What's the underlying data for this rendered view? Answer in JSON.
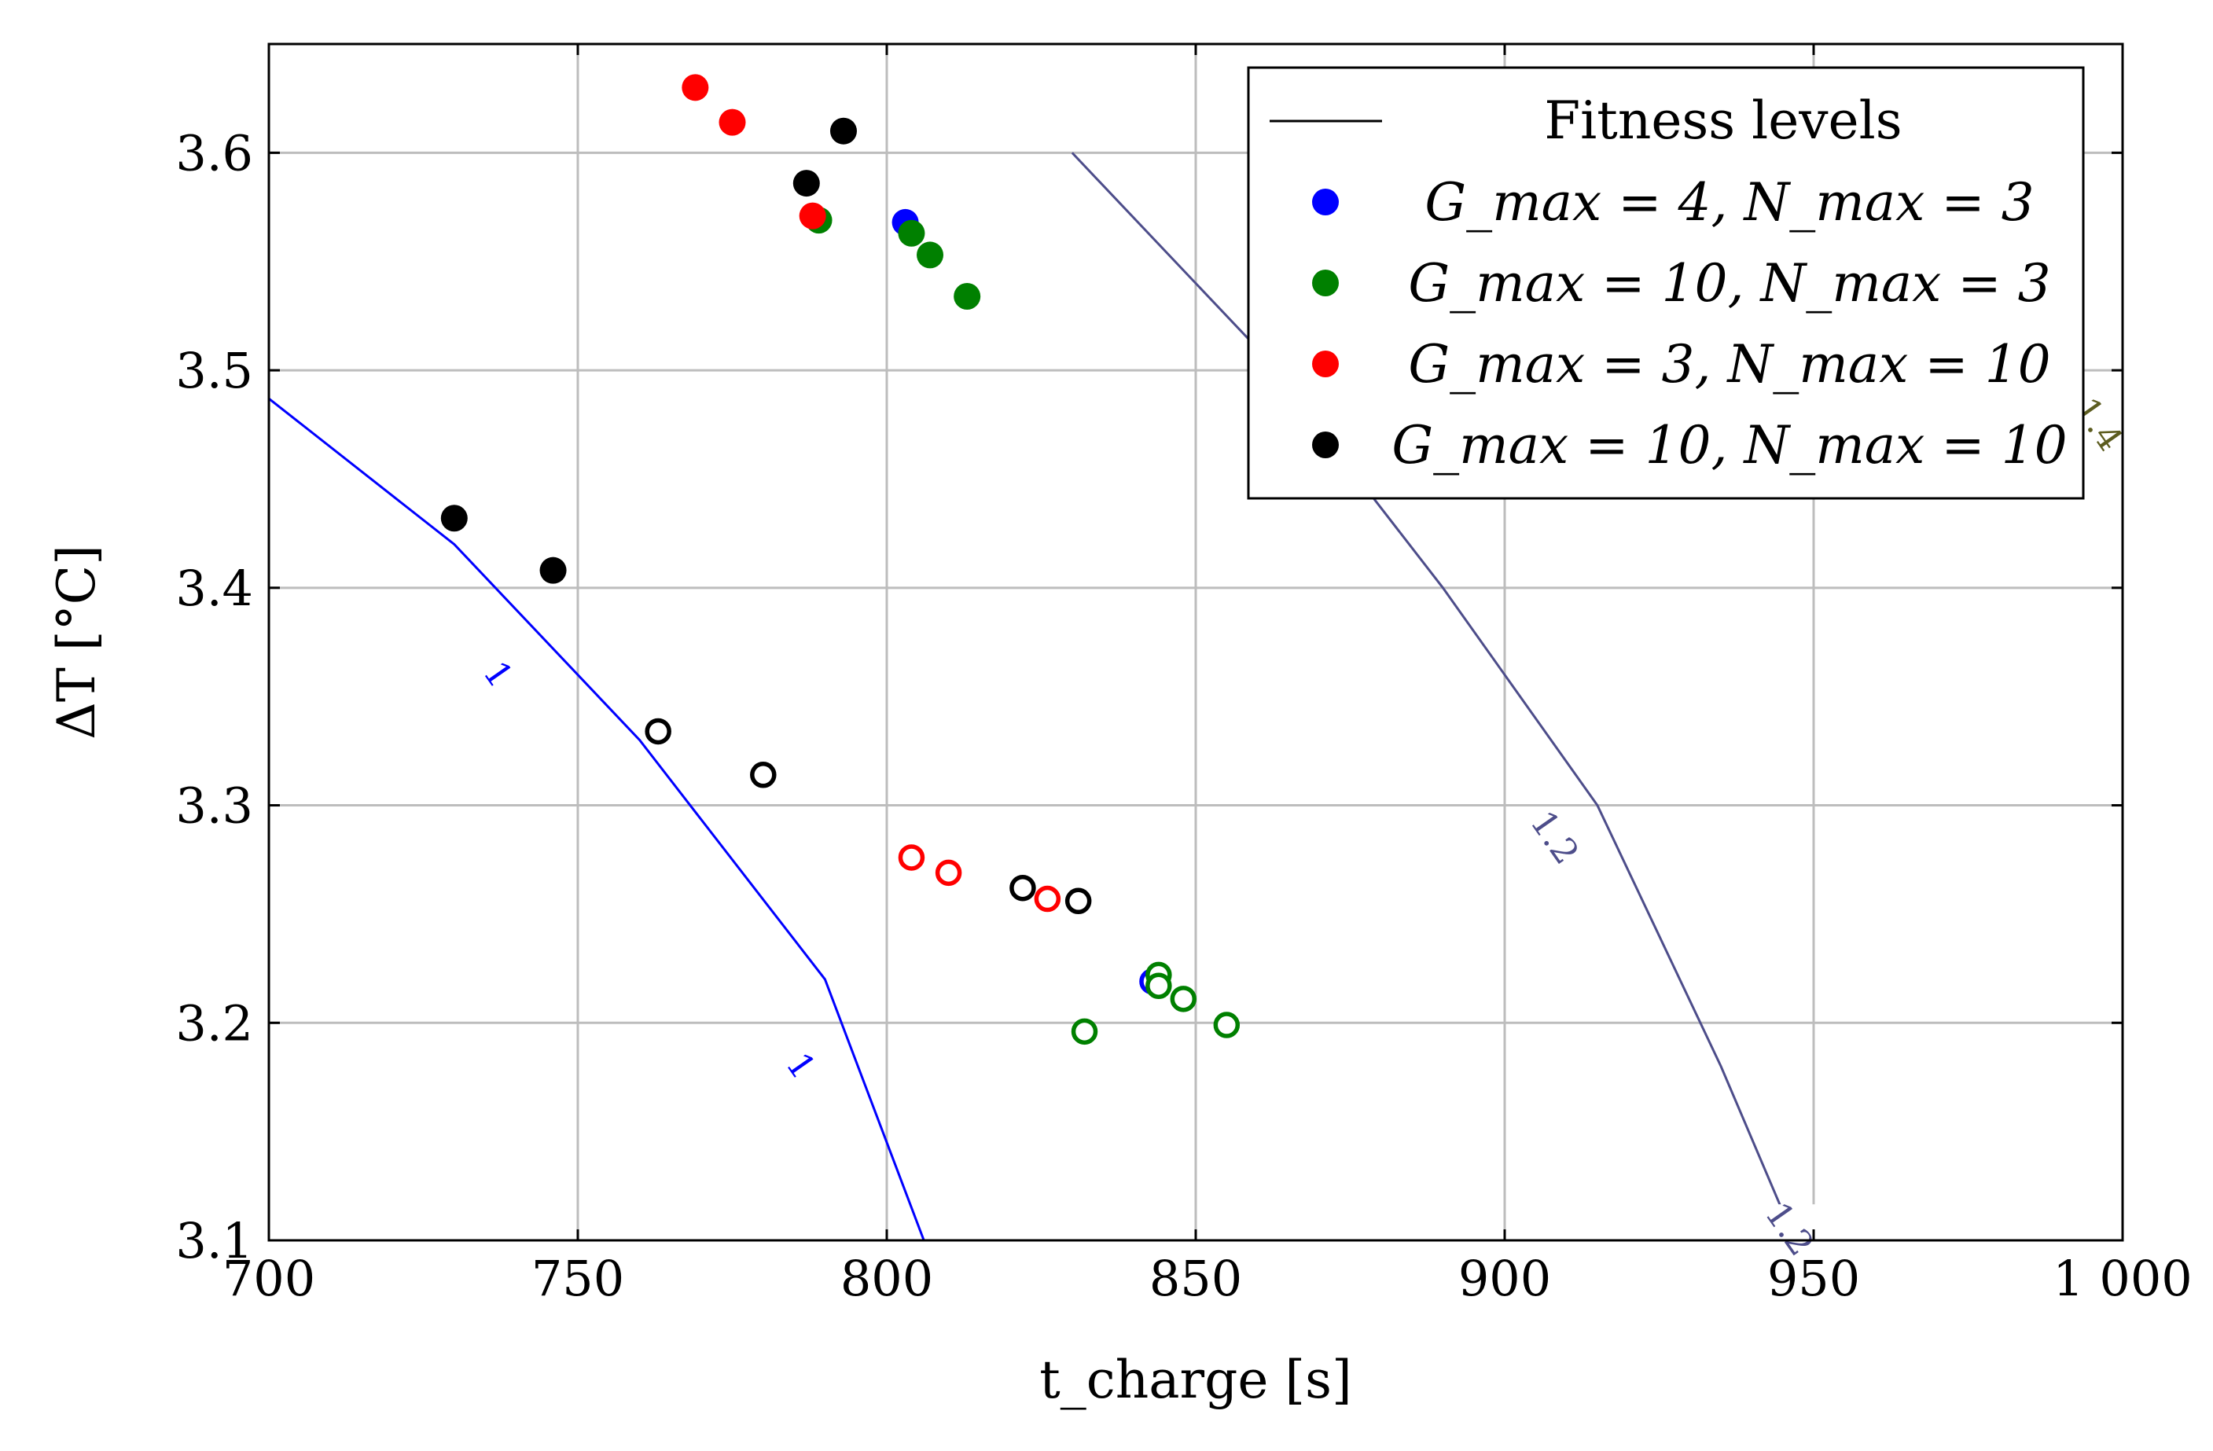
{
  "chart_data": {
    "type": "scatter",
    "title": "",
    "xlabel": "t_charge [s]",
    "ylabel": "ΔT [°C]",
    "xlim": [
      700,
      1000
    ],
    "ylim": [
      3.1,
      3.65
    ],
    "x_ticks": [
      700,
      750,
      800,
      850,
      900,
      950,
      1000
    ],
    "x_tick_labels": [
      "700",
      "750",
      "800",
      "850",
      "900",
      "950",
      "1 000"
    ],
    "y_ticks": [
      3.1,
      3.2,
      3.3,
      3.4,
      3.5,
      3.6
    ],
    "y_tick_labels": [
      "3.1",
      "3.2",
      "3.3",
      "3.4",
      "3.5",
      "3.6"
    ],
    "grid": true,
    "legend_position": "top-right",
    "legend": {
      "line_label": "Fitness levels",
      "entries": [
        {
          "label": "G_max = 4, N_max = 3",
          "color": "#0000ff"
        },
        {
          "label": "G_max = 10, N_max = 3",
          "color": "#008000"
        },
        {
          "label": "G_max = 3, N_max = 10",
          "color": "#ff0000"
        },
        {
          "label": "G_max = 10, N_max = 10",
          "color": "#000000"
        }
      ]
    },
    "contours": [
      {
        "level_label": "1",
        "color": "#0000ff",
        "points": [
          [
            700,
            3.487
          ],
          [
            730,
            3.42
          ],
          [
            760,
            3.33
          ],
          [
            790,
            3.22
          ],
          [
            806,
            3.1
          ]
        ],
        "label_positions": [
          [
            737,
            3.36
          ],
          [
            786,
            3.18
          ]
        ]
      },
      {
        "level_label": "1.2",
        "color": "#4d4d8a",
        "points": [
          [
            830,
            3.6
          ],
          [
            860,
            3.51
          ],
          [
            890,
            3.4
          ],
          [
            915,
            3.3
          ],
          [
            935,
            3.18
          ],
          [
            947,
            3.1
          ]
        ],
        "label_positions": [
          [
            908,
            3.285
          ],
          [
            946,
            3.105
          ]
        ]
      },
      {
        "level_label": "1.4",
        "color": "#5c5c1f",
        "points": [],
        "label_positions": [
          [
            996,
            3.475
          ]
        ]
      }
    ],
    "series": [
      {
        "name": "G_max = 4, N_max = 3",
        "color": "#0000ff",
        "filled": [
          [
            803,
            3.568
          ]
        ],
        "hollow": [
          [
            843,
            3.219
          ]
        ]
      },
      {
        "name": "G_max = 10, N_max = 3",
        "color": "#008000",
        "filled": [
          [
            789,
            3.569
          ],
          [
            804,
            3.563
          ],
          [
            807,
            3.553
          ],
          [
            813,
            3.534
          ]
        ],
        "hollow": [
          [
            832,
            3.196
          ],
          [
            844,
            3.222
          ],
          [
            844,
            3.217
          ],
          [
            848,
            3.211
          ],
          [
            855,
            3.199
          ]
        ]
      },
      {
        "name": "G_max = 3, N_max = 10",
        "color": "#ff0000",
        "filled": [
          [
            769,
            3.63
          ],
          [
            775,
            3.614
          ],
          [
            788,
            3.571
          ]
        ],
        "hollow": [
          [
            804,
            3.276
          ],
          [
            810,
            3.269
          ],
          [
            826,
            3.257
          ]
        ]
      },
      {
        "name": "G_max = 10, N_max = 10",
        "color": "#000000",
        "filled": [
          [
            730,
            3.432
          ],
          [
            746,
            3.408
          ],
          [
            787,
            3.586
          ],
          [
            793,
            3.61
          ]
        ],
        "hollow": [
          [
            763,
            3.334
          ],
          [
            780,
            3.314
          ],
          [
            822,
            3.262
          ],
          [
            831,
            3.256
          ]
        ]
      }
    ]
  }
}
